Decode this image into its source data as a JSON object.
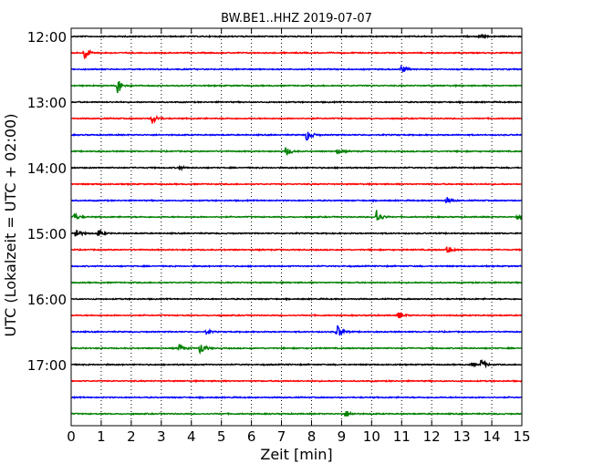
{
  "chart_data": {
    "type": "line",
    "title": "BW.BE1..HHZ 2019-07-07",
    "xlabel": "Zeit  [min]",
    "ylabel": "UTC (Lokalzeit = UTC + 02:00)",
    "xlim": [
      0,
      15
    ],
    "x_ticks": [
      0,
      1,
      2,
      3,
      4,
      5,
      6,
      7,
      8,
      9,
      10,
      11,
      12,
      13,
      14,
      15
    ],
    "y_tick_labels": [
      "12:00",
      "13:00",
      "14:00",
      "15:00",
      "16:00",
      "17:00"
    ],
    "trace_interval_min": 15,
    "grid_x": true,
    "colors": [
      "#000000",
      "#ff0000",
      "#0000ff",
      "#008000"
    ],
    "traces": [
      {
        "start": "12:00",
        "color": "#000000",
        "events": [
          [
            13.6,
            0.35
          ]
        ]
      },
      {
        "start": "12:15",
        "color": "#ff0000",
        "events": [
          [
            0.45,
            1.0
          ]
        ]
      },
      {
        "start": "12:30",
        "color": "#0000ff",
        "events": [
          [
            11.0,
            0.7
          ]
        ]
      },
      {
        "start": "12:45",
        "color": "#008000",
        "events": [
          [
            1.55,
            1.3
          ]
        ]
      },
      {
        "start": "13:00",
        "color": "#000000",
        "events": []
      },
      {
        "start": "13:15",
        "color": "#ff0000",
        "events": [
          [
            2.7,
            0.9
          ]
        ]
      },
      {
        "start": "13:30",
        "color": "#0000ff",
        "events": [
          [
            7.85,
            1.1
          ]
        ]
      },
      {
        "start": "13:45",
        "color": "#008000",
        "events": [
          [
            7.15,
            0.8
          ],
          [
            8.85,
            0.4
          ]
        ]
      },
      {
        "start": "14:00",
        "color": "#000000",
        "events": [
          [
            3.6,
            0.3
          ]
        ]
      },
      {
        "start": "14:15",
        "color": "#ff0000",
        "events": []
      },
      {
        "start": "14:30",
        "color": "#0000ff",
        "events": [
          [
            12.5,
            0.55
          ]
        ]
      },
      {
        "start": "14:45",
        "color": "#008000",
        "events": [
          [
            0.1,
            0.6
          ],
          [
            10.15,
            1.4
          ],
          [
            14.85,
            0.4
          ]
        ]
      },
      {
        "start": "15:00",
        "color": "#000000",
        "events": [
          [
            0.15,
            0.9
          ],
          [
            0.9,
            0.6
          ]
        ]
      },
      {
        "start": "15:15",
        "color": "#ff0000",
        "events": [
          [
            12.5,
            0.7
          ]
        ]
      },
      {
        "start": "15:30",
        "color": "#0000ff",
        "events": []
      },
      {
        "start": "15:45",
        "color": "#008000",
        "events": []
      },
      {
        "start": "16:00",
        "color": "#000000",
        "events": []
      },
      {
        "start": "16:15",
        "color": "#ff0000",
        "events": [
          [
            10.9,
            0.6
          ]
        ]
      },
      {
        "start": "16:30",
        "color": "#0000ff",
        "events": [
          [
            4.5,
            0.35
          ],
          [
            8.85,
            1.2
          ]
        ]
      },
      {
        "start": "16:45",
        "color": "#008000",
        "events": [
          [
            3.6,
            0.7
          ],
          [
            4.3,
            1.1
          ]
        ]
      },
      {
        "start": "17:00",
        "color": "#000000",
        "events": [
          [
            13.3,
            0.3
          ],
          [
            13.65,
            0.8
          ]
        ]
      },
      {
        "start": "17:15",
        "color": "#ff0000",
        "events": []
      },
      {
        "start": "17:30",
        "color": "#0000ff",
        "events": []
      },
      {
        "start": "17:45",
        "color": "#008000",
        "events": [
          [
            9.15,
            0.6
          ]
        ]
      }
    ]
  }
}
